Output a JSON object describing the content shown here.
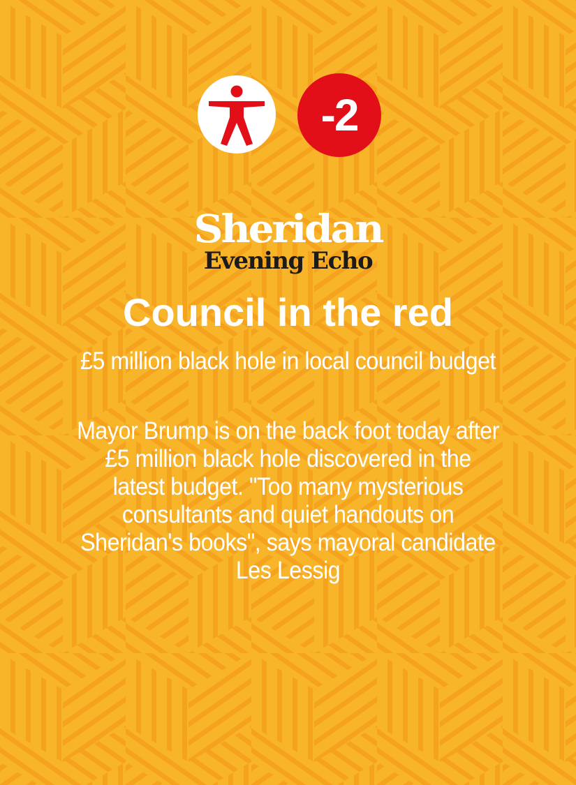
{
  "colors": {
    "background": "#f9b529",
    "pattern_lines": "#f6a623",
    "badge_person_bg": "#ffffff",
    "person_icon": "#e20f19",
    "badge_score_bg": "#e20f19",
    "text": "#ffffff",
    "masthead_dark": "#1d1b1a"
  },
  "icons": {
    "person": "person-accessibility-icon"
  },
  "card": {
    "score": "-2",
    "masthead_top": "Sheridan",
    "masthead_bottom": "Evening Echo",
    "headline": "Council in the red",
    "subheadline": "£5 million black hole in local council budget",
    "body_lines": [
      "Mayor Brump is on the back foot today after",
      "£5 million black hole discovered in the",
      "latest budget. \"Too many mysterious",
      "consultants and quiet handouts on",
      "Sheridan's books\", says mayoral candidate",
      "Les Lessig"
    ]
  }
}
